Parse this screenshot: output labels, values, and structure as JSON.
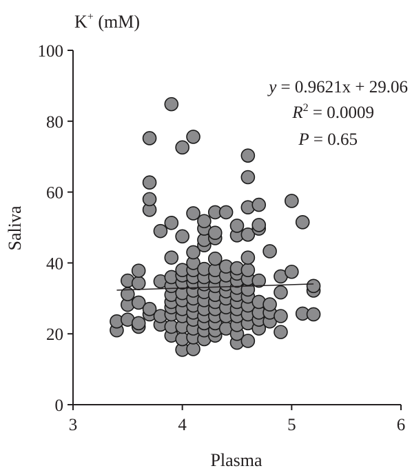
{
  "chart_data": {
    "type": "scatter",
    "title": "K⁺ (mM)",
    "title_parts": {
      "base": "K",
      "sup": "+",
      "rest": " (mM)"
    },
    "xlabel": "Plasma",
    "ylabel": "Saliva",
    "xlim": [
      3,
      6
    ],
    "ylim": [
      0,
      100
    ],
    "xticks": [
      3,
      4,
      5,
      6
    ],
    "yticks": [
      0,
      20,
      40,
      60,
      80,
      100
    ],
    "grid": false,
    "colors": {
      "marker_fill": "#8c8c8e",
      "marker_stroke": "#1a1a1a",
      "axis": "#231f20",
      "trend_line": "#231f20"
    },
    "annotation": {
      "equation": {
        "y": "y",
        "rhs": " = 0.9621x + 29.06"
      },
      "r2": {
        "r": "R",
        "sup": "2",
        "rhs": " = 0.0009"
      },
      "p": {
        "p": "P",
        "rhs": " = 0.65"
      }
    },
    "trend_line": {
      "x": [
        3.4,
        5.2
      ],
      "y": [
        32.33,
        34.06
      ]
    },
    "series": [
      {
        "points": [
          [
            3.4,
            21
          ],
          [
            3.4,
            23.5
          ],
          [
            3.5,
            24
          ],
          [
            3.5,
            28.2
          ],
          [
            3.5,
            31.2
          ],
          [
            3.5,
            35
          ],
          [
            3.6,
            22
          ],
          [
            3.6,
            23
          ],
          [
            3.6,
            28.8
          ],
          [
            3.6,
            34.3
          ],
          [
            3.6,
            37.8
          ],
          [
            3.7,
            25.5
          ],
          [
            3.7,
            27
          ],
          [
            3.7,
            55
          ],
          [
            3.7,
            58
          ],
          [
            3.7,
            62.7
          ],
          [
            3.7,
            75.2
          ],
          [
            3.8,
            22.6
          ],
          [
            3.8,
            25
          ],
          [
            3.8,
            34.8
          ],
          [
            3.8,
            49
          ],
          [
            3.9,
            19.5
          ],
          [
            3.9,
            22
          ],
          [
            3.9,
            25.5
          ],
          [
            3.9,
            27.5
          ],
          [
            3.9,
            29
          ],
          [
            3.9,
            31
          ],
          [
            3.9,
            33.5
          ],
          [
            3.9,
            36
          ],
          [
            3.9,
            41.5
          ],
          [
            3.9,
            51.3
          ],
          [
            3.9,
            84.8
          ],
          [
            4.0,
            15.5
          ],
          [
            4.0,
            18.5
          ],
          [
            4.0,
            22
          ],
          [
            4.0,
            25
          ],
          [
            4.0,
            27
          ],
          [
            4.0,
            29.5
          ],
          [
            4.0,
            31.5
          ],
          [
            4.0,
            34.5
          ],
          [
            4.0,
            36.5
          ],
          [
            4.0,
            38
          ],
          [
            4.0,
            47.5
          ],
          [
            4.0,
            72.6
          ],
          [
            4.1,
            15.7
          ],
          [
            4.1,
            19
          ],
          [
            4.1,
            21.5
          ],
          [
            4.1,
            24
          ],
          [
            4.1,
            26
          ],
          [
            4.1,
            28
          ],
          [
            4.1,
            30
          ],
          [
            4.1,
            32.2
          ],
          [
            4.1,
            34.5
          ],
          [
            4.1,
            36
          ],
          [
            4.1,
            38
          ],
          [
            4.1,
            40
          ],
          [
            4.1,
            43
          ],
          [
            4.1,
            54
          ],
          [
            4.1,
            75.6
          ],
          [
            4.2,
            18.5
          ],
          [
            4.2,
            21
          ],
          [
            4.2,
            23
          ],
          [
            4.2,
            25
          ],
          [
            4.2,
            27
          ],
          [
            4.2,
            29.5
          ],
          [
            4.2,
            31.8
          ],
          [
            4.2,
            34
          ],
          [
            4.2,
            36
          ],
          [
            4.2,
            38.3
          ],
          [
            4.2,
            45
          ],
          [
            4.2,
            46.5
          ],
          [
            4.2,
            49.7
          ],
          [
            4.2,
            51.8
          ],
          [
            4.3,
            19.5
          ],
          [
            4.3,
            21
          ],
          [
            4.3,
            23
          ],
          [
            4.3,
            25
          ],
          [
            4.3,
            27
          ],
          [
            4.3,
            29
          ],
          [
            4.3,
            31
          ],
          [
            4.3,
            33.5
          ],
          [
            4.3,
            36
          ],
          [
            4.3,
            38
          ],
          [
            4.3,
            41.2
          ],
          [
            4.3,
            47
          ],
          [
            4.3,
            48.5
          ],
          [
            4.3,
            54.3
          ],
          [
            4.4,
            21.5
          ],
          [
            4.4,
            25
          ],
          [
            4.4,
            27.5
          ],
          [
            4.4,
            30
          ],
          [
            4.4,
            32
          ],
          [
            4.4,
            34
          ],
          [
            4.4,
            36.5
          ],
          [
            4.4,
            39
          ],
          [
            4.4,
            54.3
          ],
          [
            4.5,
            17.5
          ],
          [
            4.5,
            20
          ],
          [
            4.5,
            22.5
          ],
          [
            4.5,
            25
          ],
          [
            4.5,
            27
          ],
          [
            4.5,
            29
          ],
          [
            4.5,
            31
          ],
          [
            4.5,
            33
          ],
          [
            4.5,
            35
          ],
          [
            4.5,
            37
          ],
          [
            4.5,
            38.5
          ],
          [
            4.5,
            47.8
          ],
          [
            4.5,
            50.5
          ],
          [
            4.6,
            18
          ],
          [
            4.6,
            23
          ],
          [
            4.6,
            25.5
          ],
          [
            4.6,
            28
          ],
          [
            4.6,
            30.5
          ],
          [
            4.6,
            32.5
          ],
          [
            4.6,
            35.5
          ],
          [
            4.6,
            38
          ],
          [
            4.6,
            41.5
          ],
          [
            4.6,
            48
          ],
          [
            4.6,
            55.7
          ],
          [
            4.6,
            64.2
          ],
          [
            4.6,
            70.3
          ],
          [
            4.7,
            21.5
          ],
          [
            4.7,
            24
          ],
          [
            4.7,
            26
          ],
          [
            4.7,
            29
          ],
          [
            4.7,
            35
          ],
          [
            4.7,
            49.7
          ],
          [
            4.7,
            50.7
          ],
          [
            4.7,
            56.4
          ],
          [
            4.8,
            23.5
          ],
          [
            4.8,
            26
          ],
          [
            4.8,
            28.3
          ],
          [
            4.8,
            43.3
          ],
          [
            4.9,
            20.5
          ],
          [
            4.9,
            25
          ],
          [
            4.9,
            31.7
          ],
          [
            4.9,
            36.2
          ],
          [
            5.0,
            37.5
          ],
          [
            5.0,
            57.5
          ],
          [
            5.1,
            25.7
          ],
          [
            5.1,
            51.5
          ],
          [
            5.2,
            25.5
          ],
          [
            5.2,
            32.2
          ],
          [
            5.2,
            33.5
          ]
        ]
      }
    ]
  }
}
